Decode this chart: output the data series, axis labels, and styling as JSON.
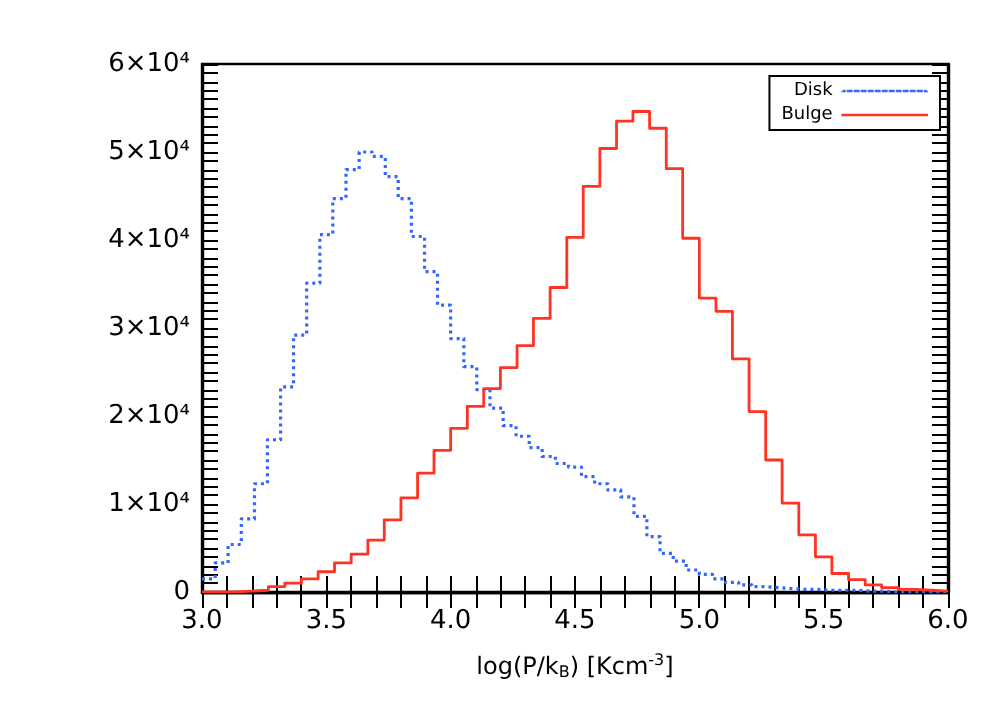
{
  "chart_data": {
    "type": "step",
    "xlabel": "log(P/k$_{B}$) [Kcm$^{-3}$]",
    "xlim": [
      3,
      6
    ],
    "xticks": [
      {
        "value": 3,
        "label": "3.0"
      },
      {
        "value": 3.5,
        "label": "3.5"
      },
      {
        "value": 4,
        "label": "4.0"
      },
      {
        "value": 4.5,
        "label": "4.5"
      },
      {
        "value": 5,
        "label": "5.0"
      },
      {
        "value": 5.5,
        "label": "5.5"
      },
      {
        "value": 6,
        "label": "6.0"
      }
    ],
    "ylim": [
      0,
      60000
    ],
    "yticks": [
      0,
      {
        "value": 10000,
        "label": "1×10⁴"
      },
      {
        "value": 20000,
        "label": "2×10⁴"
      },
      {
        "value": 30000,
        "label": "3×10⁴"
      },
      {
        "value": 40000,
        "label": "4×10⁴"
      },
      {
        "value": 50000,
        "label": "5×10⁴"
      },
      {
        "value": 60000,
        "label": "6×10⁴"
      }
    ],
    "legend": "top right",
    "grid": false,
    "series": [
      {
        "name": "Disk",
        "color": "#3366ff",
        "line_style": "dotted",
        "x": [
          3,
          3.053,
          3.105,
          3.158,
          3.211,
          3.263,
          3.316,
          3.368,
          3.421,
          3.474,
          3.526,
          3.579,
          3.632,
          3.684,
          3.737,
          3.789,
          3.842,
          3.895,
          3.947,
          4,
          4.053,
          4.105,
          4.158,
          4.211,
          4.263,
          4.316,
          4.368,
          4.421,
          4.474,
          4.526,
          4.579,
          4.632,
          4.684,
          4.737,
          4.789,
          4.842,
          4.895,
          4.947,
          5,
          5.053,
          5.105,
          5.158,
          5.211,
          5.263,
          5.316,
          5.368,
          5.421,
          5.474,
          5.526,
          5.579,
          5.632,
          5.684,
          5.737,
          5.789,
          5.842,
          5.895,
          5.947,
          6
        ],
        "values": [
          1500,
          3300,
          5400,
          8300,
          12300,
          17300,
          23300,
          29200,
          35100,
          40600,
          44700,
          48000,
          50000,
          49500,
          47200,
          44700,
          40400,
          36400,
          32600,
          28800,
          25600,
          23000,
          20900,
          18900,
          17700,
          16400,
          15400,
          14600,
          14200,
          13100,
          12300,
          11600,
          10800,
          8600,
          6300,
          4400,
          3500,
          2500,
          2000,
          1500,
          1100,
          800,
          600,
          500,
          400,
          300,
          300,
          200,
          200,
          200,
          100,
          100,
          0,
          0,
          0,
          0,
          0,
          0
        ]
      },
      {
        "name": "Bulge",
        "color": "#ff3322",
        "line_style": "solid",
        "x": [
          3,
          3.067,
          3.133,
          3.2,
          3.267,
          3.333,
          3.4,
          3.467,
          3.533,
          3.6,
          3.667,
          3.733,
          3.8,
          3.867,
          3.933,
          4,
          4.067,
          4.133,
          4.2,
          4.267,
          4.333,
          4.4,
          4.467,
          4.533,
          4.6,
          4.667,
          4.733,
          4.8,
          4.867,
          4.933,
          5,
          5.067,
          5.133,
          5.2,
          5.267,
          5.333,
          5.4,
          5.467,
          5.533,
          5.6,
          5.667,
          5.733,
          5.8,
          5.867,
          5.933,
          6
        ],
        "values": [
          0,
          0,
          100,
          200,
          600,
          1000,
          1500,
          2300,
          3300,
          4300,
          5900,
          8200,
          10700,
          13500,
          16100,
          18600,
          21100,
          23100,
          25500,
          28000,
          31100,
          34600,
          40300,
          46100,
          50400,
          53500,
          54600,
          52700,
          48100,
          40200,
          33400,
          31900,
          26500,
          20500,
          15000,
          10100,
          6500,
          4000,
          2100,
          1400,
          800,
          500,
          300,
          200,
          100,
          100
        ]
      }
    ]
  }
}
